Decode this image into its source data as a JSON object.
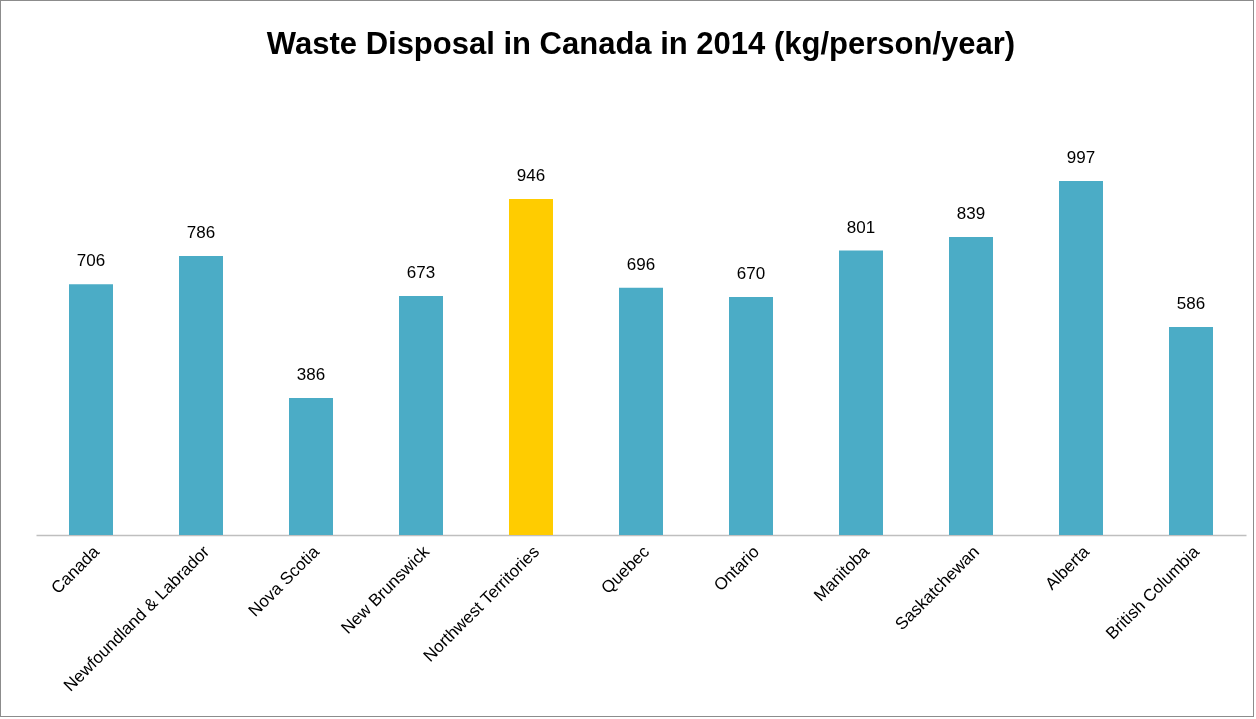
{
  "chart_data": {
    "type": "bar",
    "title": "Waste Disposal in Canada in 2014 (kg/person/year)",
    "categories": [
      "Canada",
      "Newfoundland & Labrador",
      "Nova Scotia",
      "New Brunswick",
      "Northwest Territories",
      "Quebec",
      "Ontario",
      "Manitoba",
      "Saskatchewan",
      "Alberta",
      "British Columbia"
    ],
    "values": [
      706,
      786,
      386,
      673,
      946,
      696,
      670,
      801,
      839,
      997,
      586
    ],
    "colors": [
      "#4bacc6",
      "#4bacc6",
      "#4bacc6",
      "#4bacc6",
      "#ffcc00",
      "#4bacc6",
      "#4bacc6",
      "#4bacc6",
      "#4bacc6",
      "#4bacc6",
      "#4bacc6"
    ],
    "data_labels": true,
    "tick_labels": "x"
  }
}
